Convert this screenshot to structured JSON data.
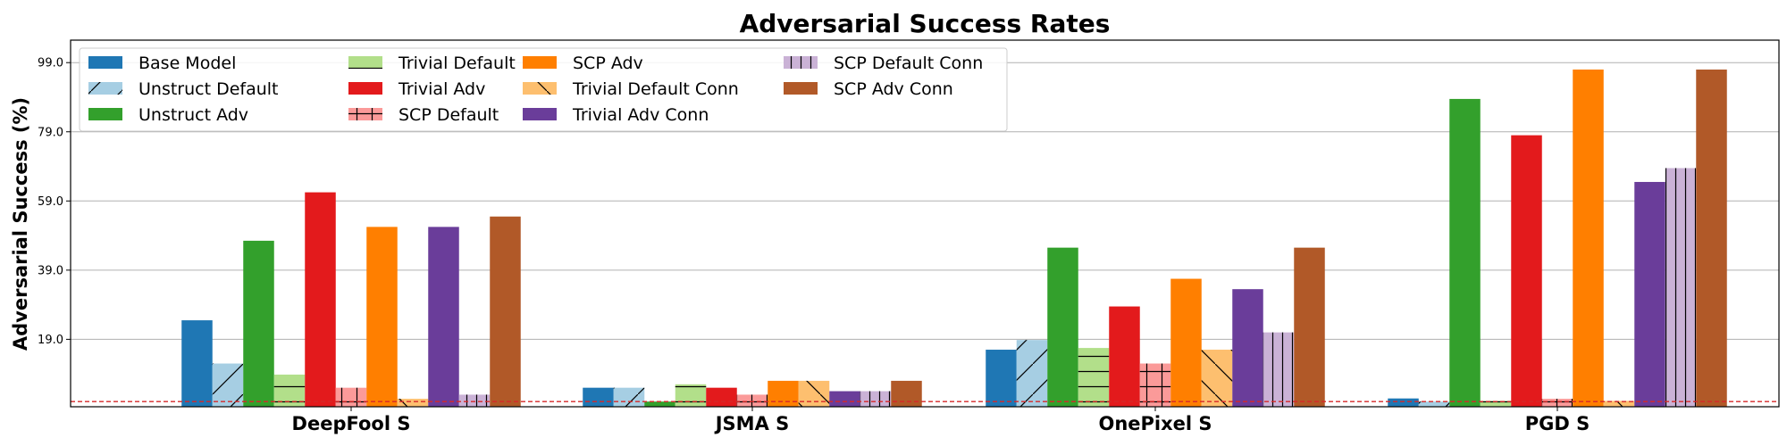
{
  "chart_data": {
    "type": "bar",
    "title": "Adversarial Success Rates",
    "xlabel": "",
    "ylabel": "Adversarial Success (%)",
    "ylim": [
      -0.5,
      105.5
    ],
    "yticks": [
      "19.0",
      "39.0",
      "59.0",
      "79.0",
      "99.0"
    ],
    "ytick_values": [
      19,
      39,
      59,
      79,
      99
    ],
    "grid": "horizontal",
    "baseline": 1.0,
    "baseline_color": "#d62728",
    "legend_position": "top-left",
    "legend_columns": 4,
    "categories": [
      "DeepFool S",
      "JSMA S",
      "OnePixel S",
      "PGD S"
    ],
    "series": [
      {
        "name": "Base Model",
        "color": "#1f77b4",
        "hatch": "none",
        "values": [
          24.5,
          5.0,
          16.0,
          1.9
        ]
      },
      {
        "name": "Unstruct Default",
        "color": "#a6cee3",
        "hatch": "slash",
        "values": [
          12.0,
          5.0,
          18.8,
          1.0
        ]
      },
      {
        "name": "Unstruct Adv",
        "color": "#33a02c",
        "hatch": "none",
        "values": [
          47.5,
          1.0,
          45.5,
          88.5
        ]
      },
      {
        "name": "Trivial Default",
        "color": "#b2df8a",
        "hatch": "horizontal",
        "values": [
          8.8,
          6.0,
          16.5,
          1.2
        ]
      },
      {
        "name": "Trivial Adv",
        "color": "#e31a1c",
        "hatch": "none",
        "values": [
          61.5,
          5.0,
          28.5,
          78.0
        ]
      },
      {
        "name": "SCP Default",
        "color": "#fb9a99",
        "hatch": "grid",
        "values": [
          5.0,
          3.0,
          12.0,
          1.8
        ]
      },
      {
        "name": "SCP Adv",
        "color": "#ff7f00",
        "hatch": "none",
        "values": [
          51.5,
          7.0,
          36.5,
          97.0
        ]
      },
      {
        "name": "Trivial Default Conn",
        "color": "#fdbf6f",
        "hatch": "backslash",
        "values": [
          1.8,
          7.0,
          16.0,
          1.2
        ]
      },
      {
        "name": "Trivial Adv Conn",
        "color": "#6a3d9a",
        "hatch": "none",
        "values": [
          51.5,
          4.0,
          33.5,
          64.5
        ]
      },
      {
        "name": "SCP Default Conn",
        "color": "#cab2d6",
        "hatch": "vertical",
        "values": [
          3.0,
          4.0,
          21.0,
          68.5
        ]
      },
      {
        "name": "SCP Adv Conn",
        "color": "#b15928",
        "hatch": "none",
        "values": [
          54.5,
          7.0,
          45.5,
          97.0
        ]
      }
    ]
  }
}
